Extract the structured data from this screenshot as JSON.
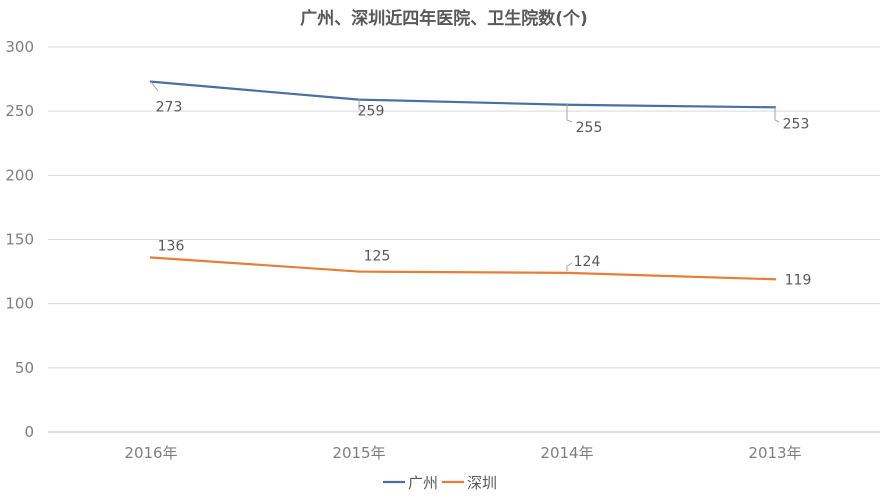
{
  "chart_data": {
    "type": "line",
    "title": "广州、深圳近四年医院、卫生院数(个)",
    "categories": [
      "2016年",
      "2015年",
      "2014年",
      "2013年"
    ],
    "series": [
      {
        "name": "广州",
        "values": [
          273,
          259,
          255,
          253
        ],
        "color": "#4a6fa5",
        "labels": [
          "273",
          "259",
          "255",
          "253"
        ]
      },
      {
        "name": "深圳",
        "values": [
          136,
          125,
          124,
          119
        ],
        "color": "#e67e35",
        "labels": [
          "136",
          "125",
          "124",
          "119"
        ]
      }
    ],
    "ylim": [
      0,
      300
    ],
    "yticks": [
      0,
      50,
      100,
      150,
      200,
      250,
      300
    ],
    "grid": true,
    "legend_position": "bottom"
  }
}
